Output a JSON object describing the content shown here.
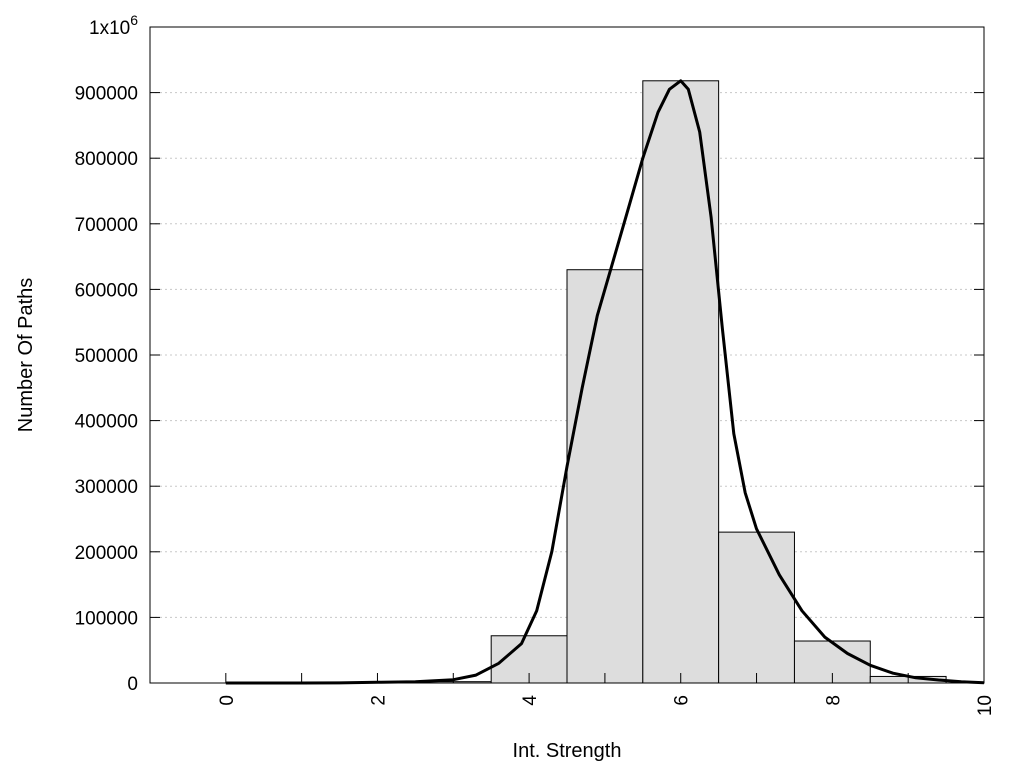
{
  "chart_data": {
    "type": "bar",
    "xlabel": "Int. Strength",
    "ylabel": "Number Of Paths",
    "xlim": [
      -1,
      10
    ],
    "ylim": [
      0,
      1000000
    ],
    "x_ticks": [
      0,
      2,
      4,
      6,
      8,
      10
    ],
    "y_ticks": [
      0,
      100000,
      200000,
      300000,
      400000,
      500000,
      600000,
      700000,
      800000,
      900000,
      1000000
    ],
    "y_tick_labels": [
      "0",
      "100000",
      "200000",
      "300000",
      "400000",
      "500000",
      "600000",
      "700000",
      "800000",
      "900000",
      "1x10"
    ],
    "y_top_exponent": "6",
    "grid": true,
    "colors": {
      "bar_fill": "#dddddd",
      "line": "#000000",
      "grid": "#c8c8c8"
    },
    "bars": {
      "x": [
        0,
        1,
        2,
        3,
        4,
        5,
        6,
        7,
        8,
        9
      ],
      "width": 1,
      "values": [
        0,
        0,
        0,
        2000,
        72000,
        630000,
        918000,
        230000,
        64000,
        10000
      ]
    },
    "curve": {
      "x": [
        0,
        0.5,
        1,
        1.5,
        2,
        2.5,
        3,
        3.3,
        3.6,
        3.9,
        4.1,
        4.3,
        4.5,
        4.7,
        4.9,
        5.1,
        5.3,
        5.5,
        5.7,
        5.85,
        6,
        6.1,
        6.25,
        6.4,
        6.55,
        6.7,
        6.85,
        7,
        7.3,
        7.6,
        7.9,
        8.2,
        8.5,
        8.8,
        9.1,
        9.4,
        9.7,
        10
      ],
      "y": [
        0,
        0,
        0,
        200,
        1000,
        2000,
        5000,
        12000,
        30000,
        60000,
        110000,
        200000,
        330000,
        450000,
        560000,
        640000,
        720000,
        800000,
        870000,
        905000,
        918000,
        905000,
        840000,
        710000,
        540000,
        380000,
        290000,
        235000,
        165000,
        110000,
        70000,
        45000,
        27000,
        15000,
        8000,
        4500,
        2000,
        500
      ]
    }
  }
}
